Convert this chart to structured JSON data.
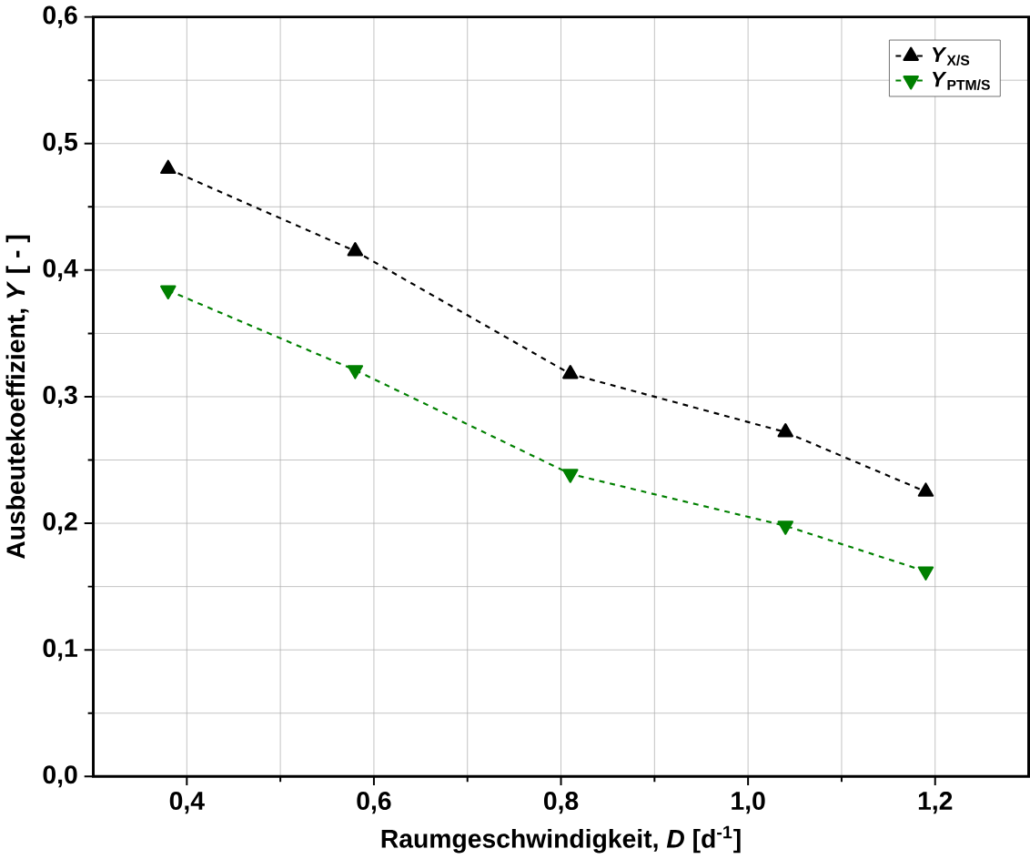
{
  "chart_data": {
    "type": "line",
    "xlabel": "Raumgeschwindigkeit, *D* [d$^{-1}$]",
    "ylabel": "Ausbeutekoeffizient, *Y* [ - ]",
    "x": [
      0.38,
      0.58,
      0.81,
      1.04,
      1.19
    ],
    "series": [
      {
        "name": "*Y*$_{X/S}$",
        "color": "#000000",
        "marker": "triangle",
        "values": [
          0.48,
          0.415,
          0.318,
          0.272,
          0.225
        ]
      },
      {
        "name": "*Y*$_{PTM/S}$",
        "color": "#008000",
        "marker": "triangle-down",
        "values": [
          0.384,
          0.321,
          0.239,
          0.198,
          0.162
        ]
      }
    ],
    "xlim": [
      0.3,
      1.3
    ],
    "ylim": [
      0,
      0.6
    ],
    "xticks": [
      {
        "value": 0.4,
        "label": "0,4"
      },
      {
        "value": 0.6,
        "label": "0,6"
      },
      {
        "value": 0.8,
        "label": "0,8"
      },
      {
        "value": 1.0,
        "label": "1,0"
      },
      {
        "value": 1.2,
        "label": "1,2"
      }
    ],
    "yticks": [
      {
        "value": 0,
        "label": "0,0"
      },
      {
        "value": 0.1,
        "label": "0,1"
      },
      {
        "value": 0.2,
        "label": "0,2"
      },
      {
        "value": 0.3,
        "label": "0,3"
      },
      {
        "value": 0.4,
        "label": "0,4"
      },
      {
        "value": 0.5,
        "label": "0,5"
      },
      {
        "value": 0.6,
        "label": "0,6"
      }
    ],
    "grid": true,
    "legend": "top right",
    "line_style": "dashed"
  }
}
